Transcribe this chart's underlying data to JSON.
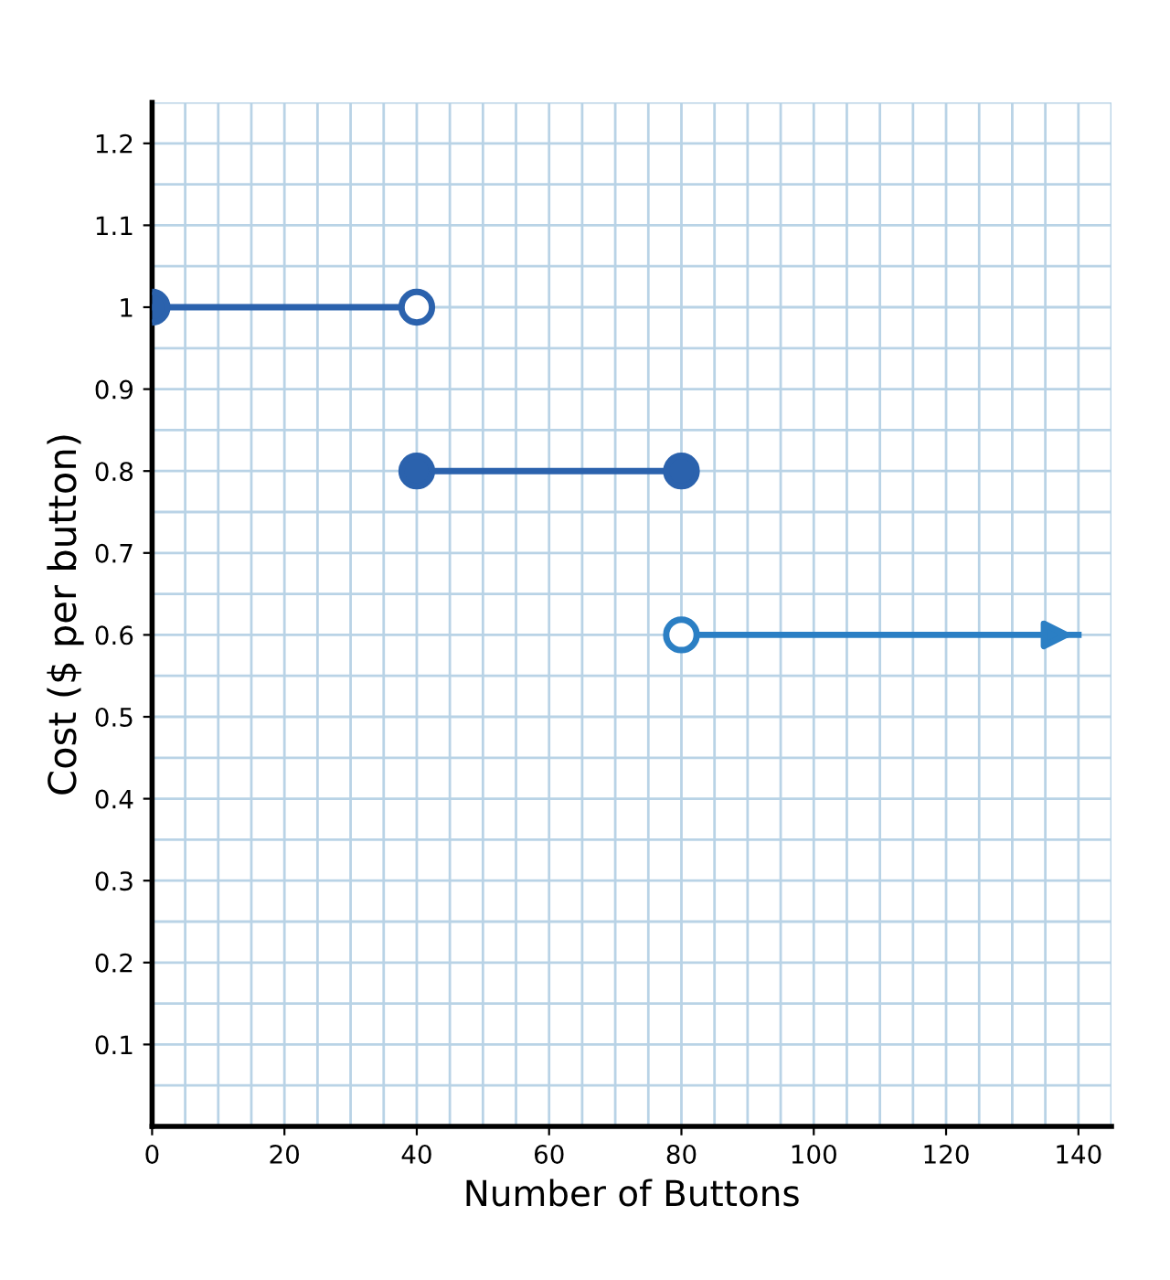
{
  "chart_data": {
    "type": "line",
    "xlabel": "Number of Buttons",
    "ylabel": "Cost ($ per button)",
    "series": [
      {
        "x": [
          0,
          40
        ],
        "values": [
          1,
          1
        ],
        "color": "#2b62ad",
        "colors": [
          "#2b62ad",
          "#ffffff"
        ]
      },
      {
        "x": [
          40,
          80
        ],
        "values": [
          0.8,
          0.8
        ],
        "color": "#2b62ad",
        "colors": [
          "#2b62ad",
          "#2b62ad"
        ]
      },
      {
        "x": [
          80,
          140
        ],
        "values": [
          0.6,
          0.6
        ],
        "color": "#2b7fc4",
        "colors": [
          "#ffffff",
          null
        ]
      }
    ],
    "xlim": [
      0,
      145
    ],
    "ylim": [
      0,
      1.25
    ],
    "xticks": [
      0,
      20,
      40,
      60,
      80,
      100,
      120,
      140
    ],
    "yticks": [
      0.1,
      0.2,
      0.3,
      0.4,
      0.5,
      0.6,
      0.7,
      0.8,
      0.9,
      1,
      1.1,
      1.2
    ],
    "grid": true,
    "marker": "circle",
    "line_style": "solid"
  }
}
